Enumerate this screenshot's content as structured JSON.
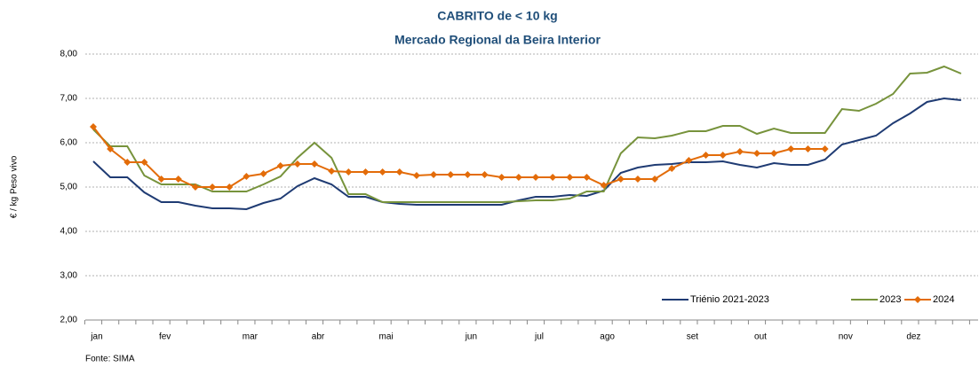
{
  "chart_data": {
    "type": "line",
    "title": "CABRITO de < 10 kg",
    "subtitle": "Mercado Regional da Beira Interior",
    "y_label": "€ / kg Peso vivo",
    "source": "Fonte: SIMA",
    "categories": [
      "jan",
      null,
      null,
      null,
      "fev",
      null,
      null,
      null,
      null,
      "mar",
      null,
      null,
      null,
      "abr",
      null,
      null,
      null,
      "mai",
      null,
      null,
      null,
      null,
      "jun",
      null,
      null,
      null,
      "jul",
      null,
      null,
      null,
      "ago",
      null,
      null,
      null,
      null,
      "set",
      null,
      null,
      null,
      "out",
      null,
      null,
      null,
      null,
      "nov",
      null,
      null,
      null,
      "dez",
      null,
      null,
      null
    ],
    "ylim": [
      2,
      8
    ],
    "yticks": [
      {
        "value": 2,
        "label": "2,00"
      },
      {
        "value": 3,
        "label": "3,00"
      },
      {
        "value": 4,
        "label": "4,00"
      },
      {
        "value": 5,
        "label": "5,00"
      },
      {
        "value": 6,
        "label": "6,00"
      },
      {
        "value": 7,
        "label": "7,00"
      },
      {
        "value": 8,
        "label": "8,00"
      }
    ],
    "grid": true,
    "legend": "bottom-right",
    "series": [
      {
        "name": "Triénio 2021-2023",
        "color": "#1f3b73",
        "marker": false,
        "values": [
          5.58,
          5.22,
          5.22,
          4.88,
          4.66,
          4.66,
          4.58,
          4.52,
          4.52,
          4.5,
          4.64,
          4.74,
          5.02,
          5.2,
          5.06,
          4.78,
          4.78,
          4.66,
          4.62,
          4.6,
          4.6,
          4.6,
          4.6,
          4.6,
          4.6,
          4.7,
          4.78,
          4.78,
          4.82,
          4.8,
          4.92,
          5.32,
          5.44,
          5.5,
          5.52,
          5.56,
          5.56,
          5.58,
          5.5,
          5.44,
          5.54,
          5.5,
          5.5,
          5.62,
          5.96,
          6.06,
          6.16,
          6.44,
          6.66,
          6.92,
          7.0,
          6.96
        ]
      },
      {
        "name": "2023",
        "color": "#77933c",
        "marker": false,
        "values": [
          6.3,
          5.92,
          5.92,
          5.26,
          5.06,
          5.06,
          5.06,
          4.9,
          4.9,
          4.9,
          5.06,
          5.24,
          5.66,
          6.0,
          5.66,
          4.84,
          4.84,
          4.66,
          4.66,
          4.66,
          4.66,
          4.66,
          4.66,
          4.66,
          4.66,
          4.68,
          4.7,
          4.7,
          4.74,
          4.9,
          4.9,
          5.76,
          6.12,
          6.1,
          6.16,
          6.26,
          6.26,
          6.38,
          6.38,
          6.2,
          6.32,
          6.22,
          6.22,
          6.22,
          6.76,
          6.72,
          6.88,
          7.1,
          7.56,
          7.58,
          7.72,
          7.56
        ]
      },
      {
        "name": "2024",
        "color": "#e36c09",
        "marker": true,
        "values": [
          6.36,
          5.86,
          5.56,
          5.56,
          5.18,
          5.18,
          5.0,
          5.0,
          5.0,
          5.24,
          5.3,
          5.48,
          5.52,
          5.52,
          5.36,
          5.34,
          5.34,
          5.34,
          5.34,
          5.26,
          5.28,
          5.28,
          5.28,
          5.28,
          5.22,
          5.22,
          5.22,
          5.22,
          5.22,
          5.22,
          5.04,
          5.18,
          5.18,
          5.18,
          5.42,
          5.6,
          5.72,
          5.72,
          5.8,
          5.76,
          5.76,
          5.86,
          5.86,
          5.86,
          null,
          null,
          null,
          null,
          null,
          null,
          null,
          null
        ]
      }
    ]
  }
}
